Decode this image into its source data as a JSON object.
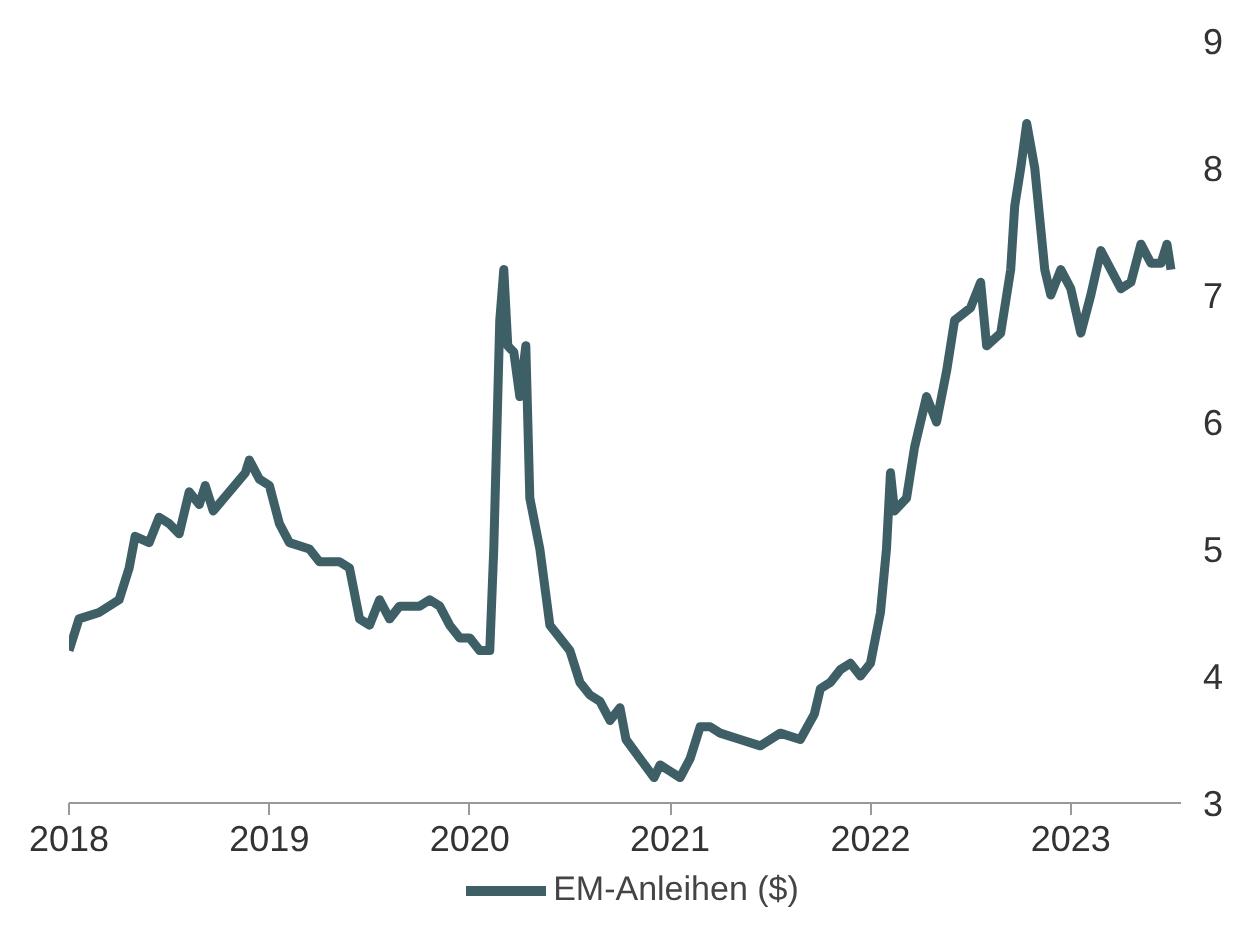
{
  "chart_data": {
    "type": "line",
    "xlim": [
      2018,
      2023.55
    ],
    "xticks": [
      2018,
      2019,
      2020,
      2021,
      2022,
      2023
    ],
    "ylim": [
      3,
      9
    ],
    "yticks": [
      3,
      4,
      5,
      6,
      7,
      8,
      9
    ],
    "grid": false,
    "legend": "bottom",
    "line_style": "solid",
    "x": [
      2018.0,
      2018.05,
      2018.15,
      2018.25,
      2018.3,
      2018.33,
      2018.4,
      2018.45,
      2018.5,
      2018.55,
      2018.6,
      2018.65,
      2018.68,
      2018.72,
      2018.8,
      2018.88,
      2018.9,
      2018.95,
      2019.0,
      2019.05,
      2019.1,
      2019.2,
      2019.25,
      2019.35,
      2019.4,
      2019.45,
      2019.5,
      2019.55,
      2019.6,
      2019.65,
      2019.75,
      2019.8,
      2019.85,
      2019.9,
      2019.95,
      2020.0,
      2020.05,
      2020.1,
      2020.12,
      2020.15,
      2020.17,
      2020.19,
      2020.22,
      2020.25,
      2020.28,
      2020.3,
      2020.35,
      2020.4,
      2020.45,
      2020.5,
      2020.55,
      2020.6,
      2020.65,
      2020.7,
      2020.75,
      2020.78,
      2020.85,
      2020.92,
      2020.95,
      2021.0,
      2021.05,
      2021.1,
      2021.15,
      2021.2,
      2021.25,
      2021.35,
      2021.45,
      2021.55,
      2021.65,
      2021.72,
      2021.75,
      2021.8,
      2021.85,
      2021.9,
      2021.95,
      2022.0,
      2022.05,
      2022.08,
      2022.1,
      2022.12,
      2022.18,
      2022.22,
      2022.28,
      2022.33,
      2022.38,
      2022.42,
      2022.5,
      2022.55,
      2022.58,
      2022.65,
      2022.7,
      2022.72,
      2022.75,
      2022.78,
      2022.82,
      2022.87,
      2022.9,
      2022.95,
      2023.0,
      2023.05,
      2023.1,
      2023.15,
      2023.2,
      2023.25,
      2023.3,
      2023.35,
      2023.4,
      2023.45,
      2023.48,
      2023.5
    ],
    "series": [
      {
        "name": "EM-Anleihen ($)",
        "color": "#3e5f66",
        "values": [
          4.2,
          4.45,
          4.5,
          4.6,
          4.85,
          5.1,
          5.05,
          5.25,
          5.2,
          5.12,
          5.45,
          5.35,
          5.5,
          5.3,
          5.45,
          5.6,
          5.7,
          5.55,
          5.5,
          5.2,
          5.05,
          5.0,
          4.9,
          4.9,
          4.85,
          4.45,
          4.4,
          4.6,
          4.45,
          4.55,
          4.55,
          4.6,
          4.55,
          4.4,
          4.3,
          4.3,
          4.2,
          4.2,
          5.0,
          6.8,
          7.2,
          6.6,
          6.55,
          6.2,
          6.6,
          5.4,
          5.0,
          4.4,
          4.3,
          4.2,
          3.95,
          3.85,
          3.8,
          3.65,
          3.75,
          3.5,
          3.35,
          3.2,
          3.3,
          3.25,
          3.2,
          3.35,
          3.6,
          3.6,
          3.55,
          3.5,
          3.45,
          3.55,
          3.5,
          3.7,
          3.9,
          3.95,
          4.05,
          4.1,
          4.0,
          4.1,
          4.5,
          5.0,
          5.6,
          5.3,
          5.4,
          5.8,
          6.2,
          6.0,
          6.4,
          6.8,
          6.9,
          7.1,
          6.6,
          6.7,
          7.2,
          7.7,
          8.0,
          8.35,
          8.0,
          7.2,
          7.0,
          7.2,
          7.05,
          6.7,
          7.0,
          7.35,
          7.2,
          7.05,
          7.1,
          7.4,
          7.25,
          7.25,
          7.4,
          7.2
        ]
      }
    ]
  }
}
